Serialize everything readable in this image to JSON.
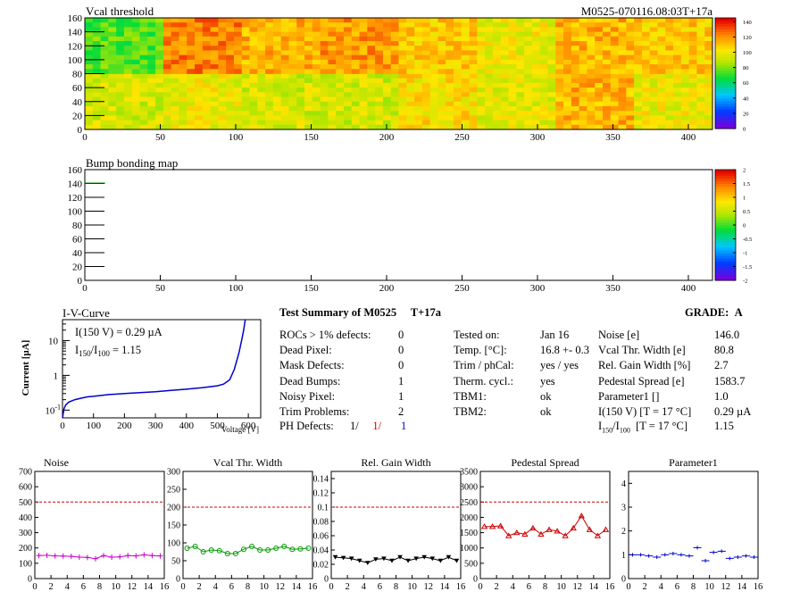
{
  "vcal_map": {
    "title": "Vcal threshold",
    "module_tag": "M0525-070116.08:03T+17a",
    "x_range": [
      0,
      416
    ],
    "y_range": [
      0,
      160
    ],
    "x_ticks": [
      0,
      50,
      100,
      150,
      200,
      250,
      300,
      350,
      400
    ],
    "y_ticks": [
      0,
      20,
      40,
      60,
      80,
      100,
      120,
      140,
      160
    ],
    "palette_ticks": [
      0,
      20,
      40,
      60,
      80,
      100,
      120,
      140
    ],
    "roc_levels": [
      [
        95,
        100,
        95,
        95,
        105,
        98,
        115,
        100
      ],
      [
        75,
        125,
        115,
        120,
        110,
        100,
        115,
        110
      ]
    ]
  },
  "bump_map": {
    "title": "Bump bonding map",
    "x_range": [
      0,
      416
    ],
    "y_range": [
      0,
      160
    ],
    "x_ticks": [
      0,
      50,
      100,
      150,
      200,
      250,
      300,
      350,
      400
    ],
    "y_ticks": [
      0,
      20,
      40,
      60,
      80,
      100,
      120,
      140,
      160
    ],
    "palette_ticks": [
      "2",
      "1.5",
      "1",
      "0.5",
      "0",
      "-0.5",
      "-1",
      "-1.5",
      "-2"
    ]
  },
  "iv_curve": {
    "title": "I-V-Curve",
    "ylabel_main": "Current [",
    "ylabel_unit": "µA",
    "ylabel_close": "]",
    "xlabel": "Voltage [V]",
    "annotation_i150": "I(150 V) = 0.29 µA",
    "annotation_ratio_value": "1.15",
    "x_ticks": [
      0,
      100,
      200,
      300,
      400,
      500,
      600
    ],
    "chart_data": {
      "type": "line",
      "x": [
        0,
        5,
        10,
        20,
        40,
        60,
        80,
        100,
        150,
        200,
        250,
        300,
        350,
        400,
        450,
        500,
        520,
        540,
        555,
        570,
        580,
        585,
        590
      ],
      "y": [
        0.06,
        0.11,
        0.14,
        0.17,
        0.2,
        0.22,
        0.24,
        0.25,
        0.28,
        0.3,
        0.32,
        0.34,
        0.37,
        0.4,
        0.44,
        0.5,
        0.56,
        0.75,
        1.5,
        4.5,
        12,
        20,
        40
      ],
      "xlim": [
        0,
        640
      ],
      "ylim": [
        0.06,
        40
      ],
      "yscale": "log",
      "color": "#0000cc"
    }
  },
  "summary": {
    "title": "Test Summary of M0525",
    "tag": "T+17a",
    "grade_label": "GRADE:",
    "grade": "A",
    "left_rows": [
      {
        "label": "ROCs > 1% defects:",
        "value": "0"
      },
      {
        "label": "Dead Pixel:",
        "value": "0"
      },
      {
        "label": "Mask Defects:",
        "value": "0"
      },
      {
        "label": "Dead Bumps:",
        "value": "1"
      },
      {
        "label": "Noisy Pixel:",
        "value": "1"
      },
      {
        "label": "Trim Problems:",
        "value": "2"
      }
    ],
    "ph_defects_label": "PH Defects:",
    "ph_defects_values": [
      "1/",
      "1/",
      "1"
    ],
    "ph_colors": [
      "#000000",
      "#cc0000",
      "#0000cc"
    ],
    "mid_rows": [
      {
        "label": "Tested on:",
        "value": "Jan 16"
      },
      {
        "label": "Temp. [°C]:",
        "value": "16.8 +- 0.3"
      },
      {
        "label": "Trim / phCal:",
        "value": "yes / yes"
      },
      {
        "label": "Therm. cycl.:",
        "value": "yes"
      },
      {
        "label": "TBM1:",
        "value": "ok"
      },
      {
        "label": "TBM2:",
        "value": "ok"
      }
    ],
    "right_rows": [
      {
        "label": "Noise [e]",
        "value": "146.0"
      },
      {
        "label": "Vcal Thr. Width [e]",
        "value": "80.8"
      },
      {
        "label": "Rel. Gain Width [%]",
        "value": "2.7"
      },
      {
        "label": "Pedestal Spread [e]",
        "value": "1583.7"
      },
      {
        "label": "Parameter1 []",
        "value": "1.0"
      },
      {
        "label": "I(150 V) [T = 17 °C]",
        "value": "0.29 µA"
      }
    ],
    "ratio_condition": "[T = 17 °C]",
    "ratio_value": "1.15"
  },
  "small_plots": [
    {
      "title": "Noise",
      "ylim": [
        0,
        700
      ],
      "y_ticks": [
        0,
        100,
        200,
        300,
        400,
        500,
        600,
        700
      ],
      "threshold": 500,
      "color": "#cc00cc",
      "marker": "plus",
      "chart_data": {
        "type": "scatter",
        "x": [
          0,
          1,
          2,
          3,
          4,
          5,
          6,
          7,
          8,
          9,
          10,
          11,
          12,
          13,
          14,
          15
        ],
        "y": [
          150,
          152,
          148,
          147,
          145,
          140,
          138,
          130,
          150,
          140,
          142,
          150,
          148,
          155,
          150,
          148
        ],
        "xlim": [
          0,
          16
        ]
      }
    },
    {
      "title": "Vcal Thr. Width",
      "ylim": [
        0,
        300
      ],
      "y_ticks": [
        0,
        50,
        100,
        150,
        200,
        250,
        300
      ],
      "threshold": 200,
      "color": "#009900",
      "marker": "circle",
      "chart_data": {
        "type": "scatter",
        "x": [
          0,
          1,
          2,
          3,
          4,
          5,
          6,
          7,
          8,
          9,
          10,
          11,
          12,
          13,
          14,
          15
        ],
        "y": [
          85,
          90,
          75,
          80,
          78,
          70,
          70,
          82,
          90,
          80,
          80,
          85,
          90,
          82,
          83,
          85
        ],
        "xlim": [
          0,
          16
        ]
      }
    },
    {
      "title": "Rel. Gain Width",
      "ylim": [
        0,
        0.15
      ],
      "y_ticks": [
        0,
        0.02,
        0.04,
        0.06,
        0.08,
        0.1,
        0.12,
        0.14
      ],
      "threshold": 0.1,
      "color": "#000000",
      "marker": "triangle-down",
      "chart_data": {
        "type": "scatter",
        "x": [
          0,
          1,
          2,
          3,
          4,
          5,
          6,
          7,
          8,
          9,
          10,
          11,
          12,
          13,
          14,
          15
        ],
        "y": [
          0.03,
          0.029,
          0.028,
          0.025,
          0.022,
          0.027,
          0.028,
          0.025,
          0.03,
          0.025,
          0.028,
          0.03,
          0.028,
          0.025,
          0.03,
          0.025
        ],
        "xlim": [
          0,
          16
        ]
      }
    },
    {
      "title": "Pedestal Spread",
      "ylim": [
        0,
        3500
      ],
      "y_ticks": [
        0,
        500,
        1000,
        1500,
        2000,
        2500,
        3000,
        3500
      ],
      "threshold": 2500,
      "color": "#cc0000",
      "marker": "triangle-up",
      "chart_data": {
        "type": "scatter",
        "x": [
          0,
          1,
          2,
          3,
          4,
          5,
          6,
          7,
          8,
          9,
          10,
          11,
          12,
          13,
          14,
          15
        ],
        "y": [
          1700,
          1700,
          1720,
          1400,
          1500,
          1450,
          1650,
          1450,
          1600,
          1550,
          1400,
          1650,
          2050,
          1600,
          1400,
          1600
        ],
        "xlim": [
          0,
          16
        ]
      }
    },
    {
      "title": "Parameter1",
      "ylim": [
        0,
        4.5
      ],
      "y_ticks": [
        0,
        1,
        2,
        3,
        4
      ],
      "threshold": null,
      "color": "#0000cc",
      "marker": "hbar",
      "chart_data": {
        "type": "scatter",
        "x": [
          0,
          1,
          2,
          3,
          4,
          5,
          6,
          7,
          8,
          9,
          10,
          11,
          12,
          13,
          14,
          15
        ],
        "y": [
          1.0,
          1.0,
          0.95,
          0.9,
          1.0,
          1.05,
          1.0,
          0.95,
          1.3,
          0.75,
          1.1,
          1.15,
          0.85,
          0.9,
          0.95,
          0.9
        ],
        "xlim": [
          0,
          16
        ]
      }
    }
  ],
  "small_x_ticks": [
    0,
    2,
    4,
    6,
    8,
    10,
    12,
    14,
    16
  ]
}
